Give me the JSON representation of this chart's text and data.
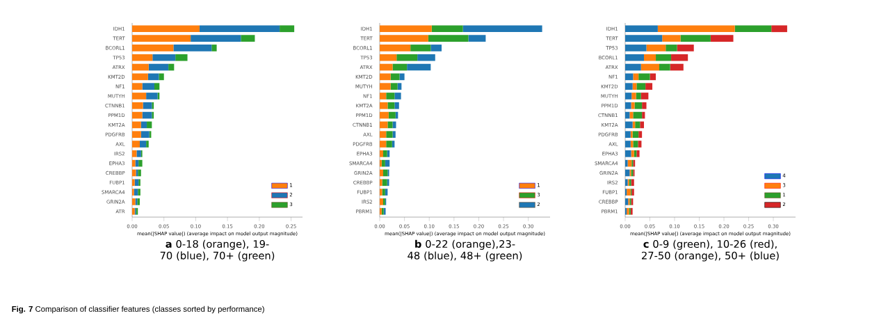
{
  "chart_data": [
    {
      "type": "bar",
      "orientation": "horizontal",
      "stacked": true,
      "legend": "bottom right",
      "categories": [
        "IDH1",
        "TERT",
        "BCORL1",
        "TP53",
        "ATRX",
        "KMT2D",
        "NF1",
        "MUTYH",
        "CTNNB1",
        "PPM1D",
        "KMT2A",
        "PDGFRB",
        "AXL",
        "IRS2",
        "EPHA3",
        "CREBBP",
        "FUBP1",
        "SMARCA4",
        "GRIN2A",
        "ATR"
      ],
      "series": [
        {
          "name": "1",
          "color": "#ff7f0e",
          "values": [
            0.106,
            0.092,
            0.065,
            0.032,
            0.026,
            0.025,
            0.016,
            0.022,
            0.017,
            0.016,
            0.014,
            0.014,
            0.012,
            0.007,
            0.005,
            0.006,
            0.004,
            0.003,
            0.005,
            0.004
          ]
        },
        {
          "name": "2",
          "color": "#1f77b4",
          "values": [
            0.126,
            0.079,
            0.06,
            0.036,
            0.031,
            0.017,
            0.019,
            0.018,
            0.014,
            0.015,
            0.009,
            0.013,
            0.01,
            0.007,
            0.005,
            0.003,
            0.006,
            0.006,
            0.003,
            0.002
          ]
        },
        {
          "name": "3",
          "color": "#2ca02c",
          "values": [
            0.023,
            0.022,
            0.008,
            0.019,
            0.009,
            0.008,
            0.008,
            0.003,
            0.003,
            0.003,
            0.008,
            0.003,
            0.004,
            0.002,
            0.006,
            0.005,
            0.003,
            0.004,
            0.004,
            0.003
          ]
        }
      ],
      "xlim": [
        0,
        0.268
      ],
      "xticks": [
        {
          "value": 0,
          "label": "0.00"
        },
        {
          "value": 0.05,
          "label": "0.05"
        },
        {
          "value": 0.1,
          "label": "0.10"
        },
        {
          "value": 0.15,
          "label": "0.15"
        },
        {
          "value": 0.2,
          "label": "0.20"
        },
        {
          "value": 0.25,
          "label": "0.25"
        }
      ],
      "xlabel": "mean(|SHAP value|) (average impact on model output magnitude)",
      "annotations": [
        "**a** 0-18 (orange), 19-70 (blue), 70+ (green)",
        "**Fig. 7** Comparison of classifier features (classes sorted by performance)"
      ]
    },
    {
      "type": "bar",
      "orientation": "horizontal",
      "stacked": true,
      "legend": "bottom right",
      "categories": [
        "IDH1",
        "TERT",
        "BCORL1",
        "TP53",
        "ATRX",
        "KMT2D",
        "MUTYH",
        "NF1",
        "KMT2A",
        "PPM1D",
        "CTNNB1",
        "AXL",
        "PDGFRB",
        "EPHA3",
        "SMARCA4",
        "GRIN2A",
        "CREBBP",
        "FUBP1",
        "IRS2",
        "PBRM1"
      ],
      "series": [
        {
          "name": "1",
          "color": "#ff7f0e",
          "values": [
            0.105,
            0.098,
            0.062,
            0.034,
            0.026,
            0.022,
            0.022,
            0.013,
            0.016,
            0.018,
            0.016,
            0.013,
            0.013,
            0.007,
            0.004,
            0.007,
            0.005,
            0.005,
            0.007,
            0.004
          ]
        },
        {
          "name": "3",
          "color": "#2ca02c",
          "values": [
            0.063,
            0.081,
            0.041,
            0.042,
            0.029,
            0.018,
            0.014,
            0.017,
            0.014,
            0.014,
            0.01,
            0.013,
            0.012,
            0.008,
            0.007,
            0.009,
            0.01,
            0.006,
            0.004,
            0.004
          ]
        },
        {
          "name": "2",
          "color": "#1f77b4",
          "values": [
            0.16,
            0.035,
            0.022,
            0.036,
            0.048,
            0.01,
            0.008,
            0.013,
            0.009,
            0.005,
            0.007,
            0.006,
            0.005,
            0.005,
            0.009,
            0.003,
            0.004,
            0.005,
            0.002,
            0.004
          ]
        }
      ],
      "xlim": [
        0,
        0.344
      ],
      "xticks": [
        {
          "value": 0,
          "label": "0.00"
        },
        {
          "value": 0.05,
          "label": "0.05"
        },
        {
          "value": 0.1,
          "label": "0.10"
        },
        {
          "value": 0.15,
          "label": "0.15"
        },
        {
          "value": 0.2,
          "label": "0.20"
        },
        {
          "value": 0.25,
          "label": "0.25"
        },
        {
          "value": 0.3,
          "label": "0.30"
        }
      ],
      "xlabel": "mean(|SHAP value|) (average impact on model output magnitude)",
      "annotations": [
        "**b** 0-22 (orange),23-48 (blue), 48+ (green)"
      ]
    },
    {
      "type": "bar",
      "orientation": "horizontal",
      "stacked": true,
      "legend": "bottom right",
      "categories": [
        "IDH1",
        "TERT",
        "TP53",
        "BCORL1",
        "ATRX",
        "NF1",
        "KMT2D",
        "MUTYH",
        "PPM1D",
        "CTNNB1",
        "KMT2A",
        "PDGFRB",
        "AXL",
        "EPHA3",
        "SMARCA4",
        "GRIN2A",
        "IRS2",
        "FUBP1",
        "CREBBP",
        "PBRM1"
      ],
      "series": [
        {
          "name": "4",
          "color": "#1f77b4",
          "values": [
            0.066,
            0.075,
            0.043,
            0.038,
            0.032,
            0.016,
            0.015,
            0.013,
            0.012,
            0.009,
            0.015,
            0.011,
            0.011,
            0.012,
            0.005,
            0.009,
            0.005,
            0.003,
            0.006,
            0.003
          ]
        },
        {
          "name": "3",
          "color": "#ff7f0e",
          "values": [
            0.156,
            0.037,
            0.039,
            0.024,
            0.037,
            0.011,
            0.008,
            0.009,
            0.007,
            0.007,
            0.005,
            0.004,
            0.005,
            0.006,
            0.008,
            0.003,
            0.003,
            0.008,
            0.003,
            0.005
          ]
        },
        {
          "name": "1",
          "color": "#2ca02c",
          "values": [
            0.074,
            0.061,
            0.023,
            0.031,
            0.022,
            0.023,
            0.018,
            0.01,
            0.015,
            0.018,
            0.01,
            0.012,
            0.01,
            0.005,
            0.003,
            0.004,
            0.004,
            0.002,
            0.003,
            0.003
          ]
        },
        {
          "name": "2",
          "color": "#d62728",
          "values": [
            0.032,
            0.046,
            0.034,
            0.034,
            0.027,
            0.012,
            0.014,
            0.015,
            0.009,
            0.006,
            0.008,
            0.007,
            0.007,
            0.006,
            0.004,
            0.003,
            0.006,
            0.005,
            0.004,
            0.004
          ]
        }
      ],
      "xlim": [
        0,
        0.345
      ],
      "xticks": [
        {
          "value": 0,
          "label": "0.00"
        },
        {
          "value": 0.05,
          "label": "0.05"
        },
        {
          "value": 0.1,
          "label": "0.10"
        },
        {
          "value": 0.15,
          "label": "0.15"
        },
        {
          "value": 0.2,
          "label": "0.20"
        },
        {
          "value": 0.25,
          "label": "0.25"
        },
        {
          "value": 0.3,
          "label": "0.30"
        }
      ],
      "xlabel": "mean(|SHAP value|) (average impact on model output magnitude)",
      "annotations": [
        "**c** 0-9 (green), 10-26 (red), 27-50 (orange), 50+ (blue)"
      ]
    }
  ]
}
